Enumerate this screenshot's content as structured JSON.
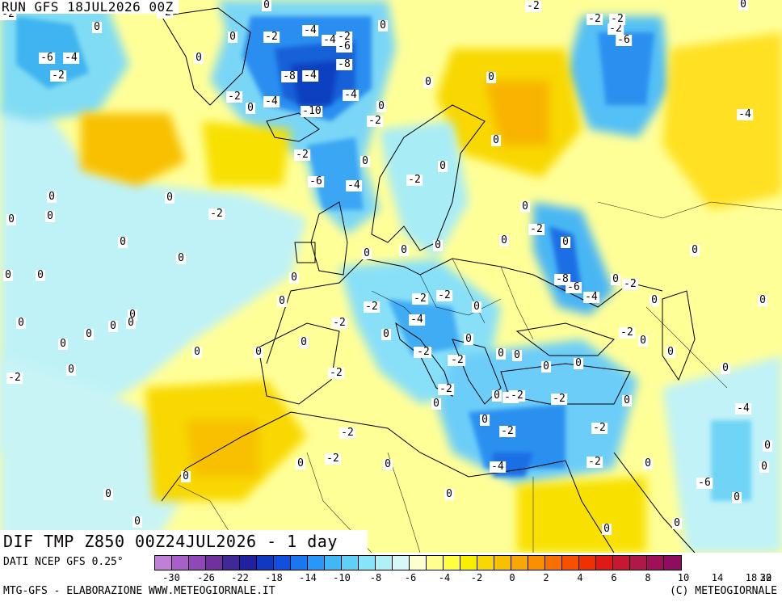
{
  "run_title": "RUN GFS 18JUL2026 00Z",
  "main_title": "DIF TMP Z850 00Z24JUL2026 - 1 day",
  "data_source": "DATI NCEP GFS 0.25°",
  "credit_left": "MTG-GFS - ELABORAZIONE WWW.METEOGIORNALE.IT",
  "credit_right": "(C) METEOGIORNALE",
  "colorbar": {
    "colors": [
      "#c080d8",
      "#a860c8",
      "#9048b8",
      "#7030a0",
      "#402898",
      "#2020a0",
      "#1038c0",
      "#1050e0",
      "#1878f0",
      "#2898f8",
      "#40b8f8",
      "#60d0f8",
      "#88e4f8",
      "#b0f0f8",
      "#d8f8f8",
      "#ffffd0",
      "#ffff90",
      "#ffff40",
      "#f8f000",
      "#f8d800",
      "#f8c000",
      "#f8a800",
      "#f89000",
      "#f87000",
      "#f85000",
      "#f03000",
      "#e01818",
      "#c81830",
      "#b01848",
      "#a01058",
      "#900c60"
    ],
    "labels": [
      "-30",
      "-26",
      "-22",
      "-18",
      "-14",
      "-10",
      "-8",
      "-6",
      "-4",
      "-2",
      "0",
      "2",
      "4",
      "6",
      "8",
      "10",
      "14",
      "18",
      "22",
      "30"
    ]
  },
  "map_labels": [
    {
      "t": "-2"
    },
    {
      "t": "-2"
    },
    {
      "t": "0"
    },
    {
      "t": "0"
    },
    {
      "t": "-2"
    },
    {
      "t": "0"
    },
    {
      "t": "-2"
    },
    {
      "t": "0"
    },
    {
      "t": "-6"
    },
    {
      "t": "-4"
    },
    {
      "t": "-2"
    },
    {
      "t": "0"
    },
    {
      "t": "0"
    },
    {
      "t": "0"
    },
    {
      "t": "-2"
    },
    {
      "t": "-4"
    },
    {
      "t": "-2"
    },
    {
      "t": "-4"
    },
    {
      "t": "-6"
    },
    {
      "t": "0"
    },
    {
      "t": "-8"
    },
    {
      "t": "-4"
    },
    {
      "t": "-8"
    },
    {
      "t": "-2"
    },
    {
      "t": "-4"
    },
    {
      "t": "-10"
    },
    {
      "t": "-4"
    },
    {
      "t": "-2"
    },
    {
      "t": "0"
    },
    {
      "t": "0"
    },
    {
      "t": "-2"
    },
    {
      "t": "-2"
    },
    {
      "t": "-6"
    },
    {
      "t": "-4"
    },
    {
      "t": "0"
    },
    {
      "t": "-2"
    },
    {
      "t": "0"
    },
    {
      "t": "0"
    },
    {
      "t": "-2"
    },
    {
      "t": "-4"
    },
    {
      "t": "-6"
    },
    {
      "t": "-2"
    },
    {
      "t": "0"
    },
    {
      "t": "0"
    },
    {
      "t": "0"
    },
    {
      "t": "0"
    },
    {
      "t": "0"
    },
    {
      "t": "0"
    },
    {
      "t": "-2"
    },
    {
      "t": "0"
    },
    {
      "t": "0"
    },
    {
      "t": "0"
    },
    {
      "t": "0"
    },
    {
      "t": "0"
    },
    {
      "t": "0"
    },
    {
      "t": "0"
    },
    {
      "t": "0"
    },
    {
      "t": "0"
    },
    {
      "t": "0"
    },
    {
      "t": "0"
    },
    {
      "t": "0"
    },
    {
      "t": "0"
    },
    {
      "t": "0"
    },
    {
      "t": "-2"
    },
    {
      "t": "0"
    },
    {
      "t": "-2"
    },
    {
      "t": "0"
    },
    {
      "t": "0"
    },
    {
      "t": "0"
    },
    {
      "t": "0"
    },
    {
      "t": "0"
    },
    {
      "t": "-2"
    },
    {
      "t": "-4"
    },
    {
      "t": "0"
    },
    {
      "t": "-2"
    },
    {
      "t": "-4"
    },
    {
      "t": "-8"
    },
    {
      "t": "-6"
    },
    {
      "t": "0"
    },
    {
      "t": "-2"
    },
    {
      "t": "-4"
    },
    {
      "t": "0"
    },
    {
      "t": "-2"
    },
    {
      "t": "0"
    },
    {
      "t": "0"
    },
    {
      "t": "0"
    },
    {
      "t": "0"
    },
    {
      "t": "0"
    },
    {
      "t": "0"
    },
    {
      "t": "0"
    },
    {
      "t": "-2"
    },
    {
      "t": "-2"
    },
    {
      "t": "-2"
    },
    {
      "t": "0"
    },
    {
      "t": "-4"
    },
    {
      "t": "-2"
    },
    {
      "t": "0"
    },
    {
      "t": "0"
    },
    {
      "t": "-2"
    },
    {
      "t": "-2"
    },
    {
      "t": "-4"
    },
    {
      "t": "0"
    },
    {
      "t": "-2"
    },
    {
      "t": "-4"
    },
    {
      "t": "-2"
    },
    {
      "t": "0"
    },
    {
      "t": "0"
    },
    {
      "t": "0"
    },
    {
      "t": "-6"
    },
    {
      "t": "0"
    },
    {
      "t": "0"
    },
    {
      "t": "0"
    },
    {
      "t": "0"
    },
    {
      "t": "0"
    },
    {
      "t": "0"
    },
    {
      "t": "0"
    },
    {
      "t": "-2"
    },
    {
      "t": "-2"
    },
    {
      "t": "0"
    },
    {
      "t": "-2"
    },
    {
      "t": "0"
    },
    {
      "t": "0"
    },
    {
      "t": "0"
    },
    {
      "t": "0"
    },
    {
      "t": "0"
    },
    {
      "t": "0"
    },
    {
      "t": "-2"
    }
  ]
}
